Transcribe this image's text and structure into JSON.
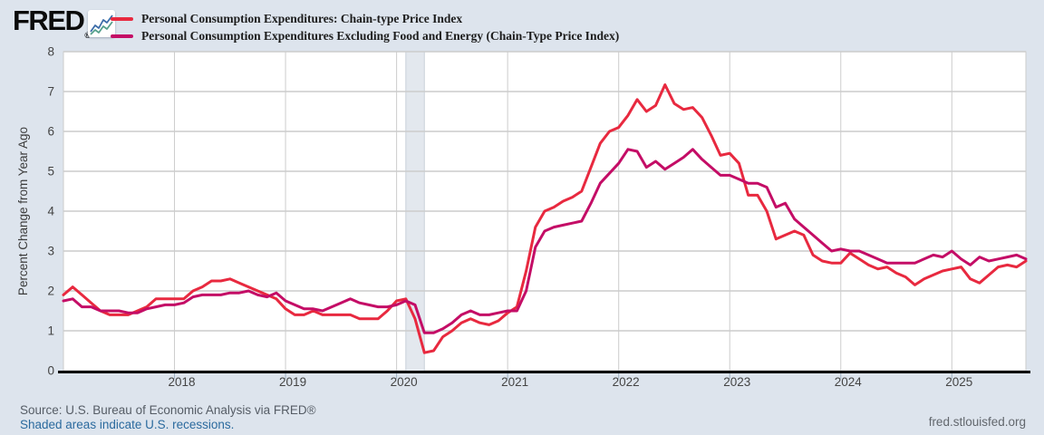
{
  "header": {
    "logo_text": "FRED",
    "registered_mark": "®",
    "logo_icon": "line-chart-sparkline-icon"
  },
  "footer": {
    "source": "Source: U.S. Bureau of Economic Analysis via FRED®",
    "recession_note": "Shaded areas indicate U.S. recessions.",
    "site": "fred.stlouisfed.org"
  },
  "colors": {
    "page_background": "#dde4ed",
    "plot_background": "#ffffff",
    "gridline": "#cccccc",
    "axis_line": "#000000",
    "recession_band": "#e3e8ee",
    "recession_band_edge": "#c9d0d9",
    "tick_label": "#444444",
    "link_blue": "#2b6a9e"
  },
  "chart_data": {
    "type": "line",
    "title": "",
    "xlabel": "",
    "ylabel": "Percent Change from Year Ago",
    "ylim": [
      0,
      8
    ],
    "y_ticks": [
      0,
      1,
      2,
      3,
      4,
      5,
      6,
      7,
      8
    ],
    "grid": true,
    "legend_position": "top",
    "frequency": "monthly",
    "x_start": "2017-01",
    "x_end": "2025-09",
    "x_tick_labels": [
      "2018",
      "2019",
      "2020",
      "2021",
      "2022",
      "2023",
      "2024",
      "2025"
    ],
    "recession_band": {
      "from": "2020-02",
      "to": "2020-04"
    },
    "series": [
      {
        "name": "Personal Consumption Expenditures: Chain-type Price Index",
        "color": "#e8293f",
        "values": [
          1.9,
          2.1,
          1.9,
          1.7,
          1.5,
          1.4,
          1.4,
          1.4,
          1.5,
          1.6,
          1.8,
          1.8,
          1.8,
          1.8,
          2.0,
          2.1,
          2.25,
          2.25,
          2.3,
          2.2,
          2.1,
          2.0,
          1.9,
          1.8,
          1.55,
          1.4,
          1.4,
          1.5,
          1.4,
          1.4,
          1.4,
          1.4,
          1.3,
          1.3,
          1.3,
          1.5,
          1.75,
          1.8,
          1.3,
          0.45,
          0.5,
          0.85,
          1.0,
          1.2,
          1.3,
          1.2,
          1.15,
          1.25,
          1.45,
          1.6,
          2.5,
          3.6,
          4.0,
          4.1,
          4.25,
          4.35,
          4.5,
          5.1,
          5.7,
          6.0,
          6.1,
          6.4,
          6.8,
          6.5,
          6.65,
          7.17,
          6.7,
          6.55,
          6.6,
          6.35,
          5.9,
          5.4,
          5.45,
          5.2,
          4.4,
          4.4,
          4.0,
          3.3,
          3.4,
          3.5,
          3.4,
          2.9,
          2.75,
          2.7,
          2.7,
          2.95,
          2.8,
          2.65,
          2.55,
          2.6,
          2.45,
          2.35,
          2.15,
          2.3,
          2.4,
          2.5,
          2.55,
          2.6,
          2.3,
          2.2,
          2.4,
          2.6,
          2.65,
          2.6,
          2.75
        ]
      },
      {
        "name": "Personal Consumption Expenditures Excluding Food and Energy (Chain-Type Price Index)",
        "color": "#c40d66",
        "values": [
          1.75,
          1.8,
          1.6,
          1.6,
          1.5,
          1.5,
          1.5,
          1.45,
          1.45,
          1.55,
          1.6,
          1.65,
          1.65,
          1.7,
          1.85,
          1.9,
          1.9,
          1.9,
          1.95,
          1.95,
          2.0,
          1.9,
          1.85,
          1.95,
          1.75,
          1.65,
          1.55,
          1.55,
          1.5,
          1.6,
          1.7,
          1.8,
          1.7,
          1.65,
          1.6,
          1.6,
          1.65,
          1.75,
          1.65,
          0.95,
          0.95,
          1.05,
          1.2,
          1.4,
          1.5,
          1.4,
          1.4,
          1.45,
          1.5,
          1.5,
          2.0,
          3.1,
          3.5,
          3.6,
          3.65,
          3.7,
          3.75,
          4.2,
          4.7,
          4.95,
          5.2,
          5.55,
          5.5,
          5.1,
          5.25,
          5.05,
          5.2,
          5.35,
          5.55,
          5.3,
          5.1,
          4.9,
          4.9,
          4.8,
          4.7,
          4.7,
          4.6,
          4.1,
          4.2,
          3.8,
          3.6,
          3.4,
          3.2,
          3.0,
          3.05,
          3.0,
          3.0,
          2.9,
          2.8,
          2.7,
          2.7,
          2.7,
          2.7,
          2.8,
          2.9,
          2.85,
          3.0,
          2.8,
          2.65,
          2.85,
          2.75,
          2.8,
          2.85,
          2.9,
          2.8
        ]
      }
    ]
  }
}
